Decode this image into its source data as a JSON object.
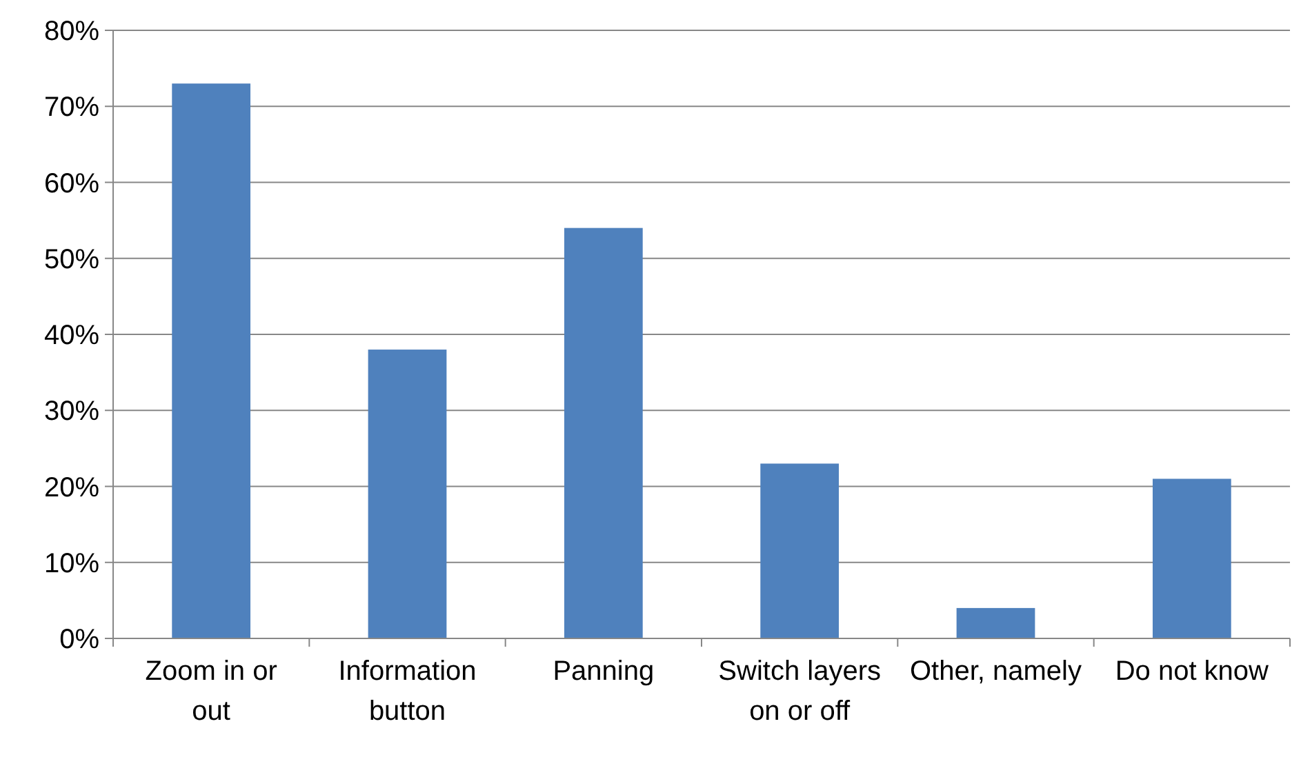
{
  "chart_data": {
    "type": "bar",
    "categories": [
      "Zoom in or out",
      "Information button",
      "Panning",
      "Switch layers on or off",
      "Other, namely",
      "Do not know"
    ],
    "values": [
      73,
      38,
      54,
      23,
      4,
      21
    ],
    "color": "#4f81bd",
    "ylim": [
      0,
      80
    ],
    "yticks": [
      {
        "value": 0,
        "label": "0%"
      },
      {
        "value": 10,
        "label": "10%"
      },
      {
        "value": 20,
        "label": "20%"
      },
      {
        "value": 30,
        "label": "30%"
      },
      {
        "value": 40,
        "label": "40%"
      },
      {
        "value": 50,
        "label": "50%"
      },
      {
        "value": 60,
        "label": "60%"
      },
      {
        "value": 70,
        "label": "70%"
      },
      {
        "value": 80,
        "label": "80%"
      }
    ],
    "grid": "y"
  }
}
